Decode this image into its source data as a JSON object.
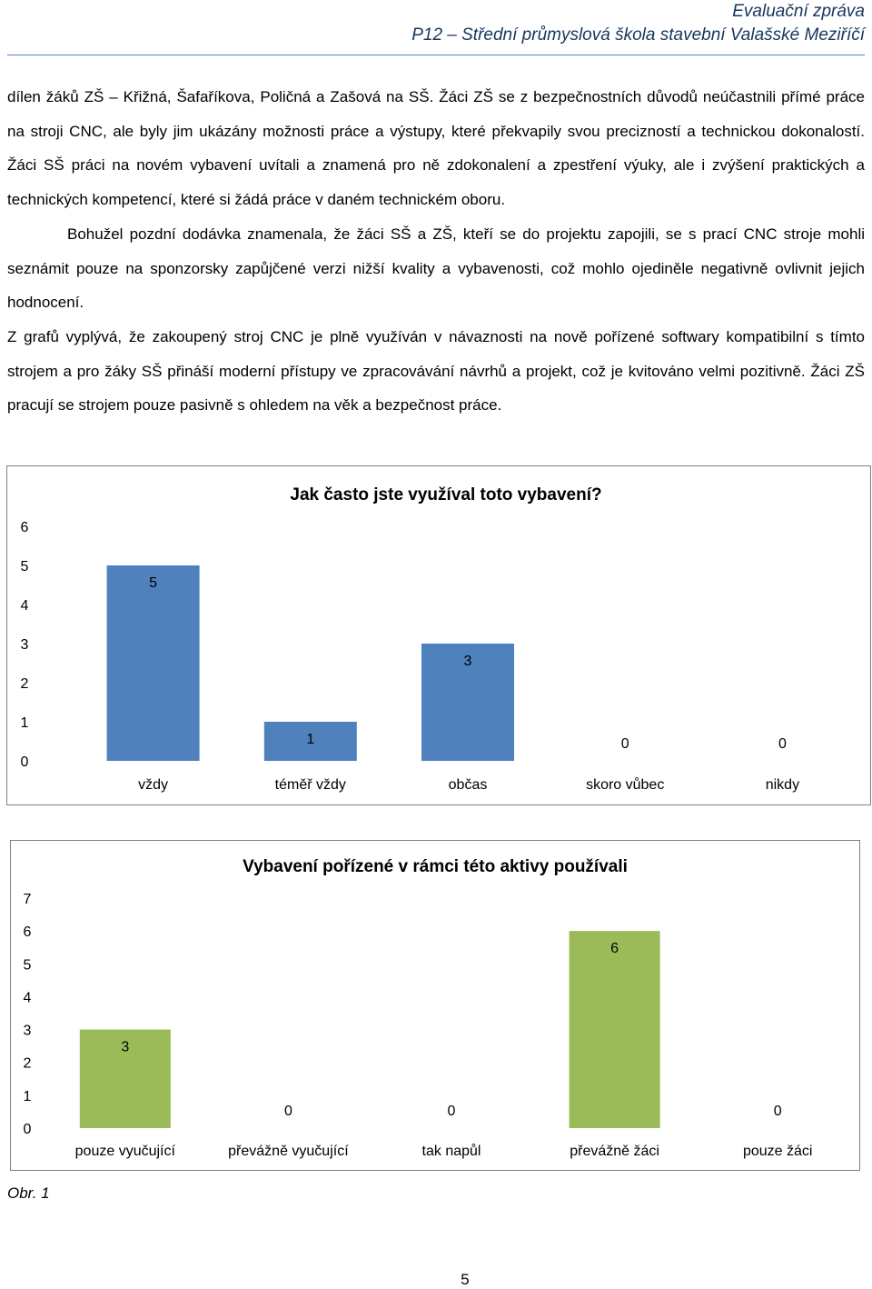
{
  "header": {
    "title": "Evaluační zpráva",
    "subtitle": "P12 – Střední průmyslová škola stavební Valašské Meziříčí"
  },
  "paragraphs": [
    "dílen žáků ZŠ – Křižná, Šafaříkova, Poličná a Zašová na SŠ. Žáci ZŠ se z bezpečnostních důvodů neúčastnili přímé práce na stroji CNC, ale byly jim ukázány možnosti práce a výstupy, které překvapily svou precizností a technickou dokonalostí. Žáci SŠ práci na novém vybavení uvítali a znamená pro ně zdokonalení a zpestření výuky, ale i zvýšení praktických a technických kompetencí, které si žádá práce v daném technickém oboru.",
    "Bohužel pozdní dodávka znamenala, že žáci SŠ a ZŠ, kteří se do projektu zapojili, se s prací CNC stroje mohli seznámit pouze na sponzorsky zapůjčené verzi nižší kvality a vybavenosti, což mohlo ojediněle negativně ovlivnit jejich hodnocení.",
    "Z grafů vyplývá, že zakoupený stroj CNC je plně využíván v návaznosti na nově pořízené softwary kompatibilní s tímto strojem a pro žáky SŠ přináší moderní přístupy ve zpracovávání návrhů a projekt, což je kvitováno velmi pozitivně. Žáci ZŠ pracují se strojem pouze pasivně s ohledem na věk a bezpečnost práce."
  ],
  "chart_data": [
    {
      "type": "bar",
      "title": "Jak často jste využíval toto vybavení?",
      "categories": [
        "vždy",
        "téměř vždy",
        "občas",
        "skoro vůbec",
        "nikdy"
      ],
      "values": [
        5,
        1,
        3,
        0,
        0
      ],
      "ylim": [
        0,
        6
      ],
      "yticks": [
        "0",
        "1",
        "2",
        "3",
        "4",
        "5",
        "6"
      ],
      "color": "#4f81bd",
      "grid": false,
      "legend": "none"
    },
    {
      "type": "bar",
      "title": "Vybavení pořízené v rámci této aktivy používali",
      "categories": [
        "pouze vyučující",
        "převážně vyučující",
        "tak napůl",
        "převážně žáci",
        "pouze žáci"
      ],
      "values": [
        3,
        0,
        0,
        6,
        0
      ],
      "ylim": [
        0,
        7
      ],
      "yticks": [
        "0",
        "1",
        "2",
        "3",
        "4",
        "5",
        "6",
        "7"
      ],
      "color": "#9bbb59",
      "grid": false,
      "legend": "none"
    }
  ],
  "caption": "Obr. 1",
  "page_number": "5"
}
